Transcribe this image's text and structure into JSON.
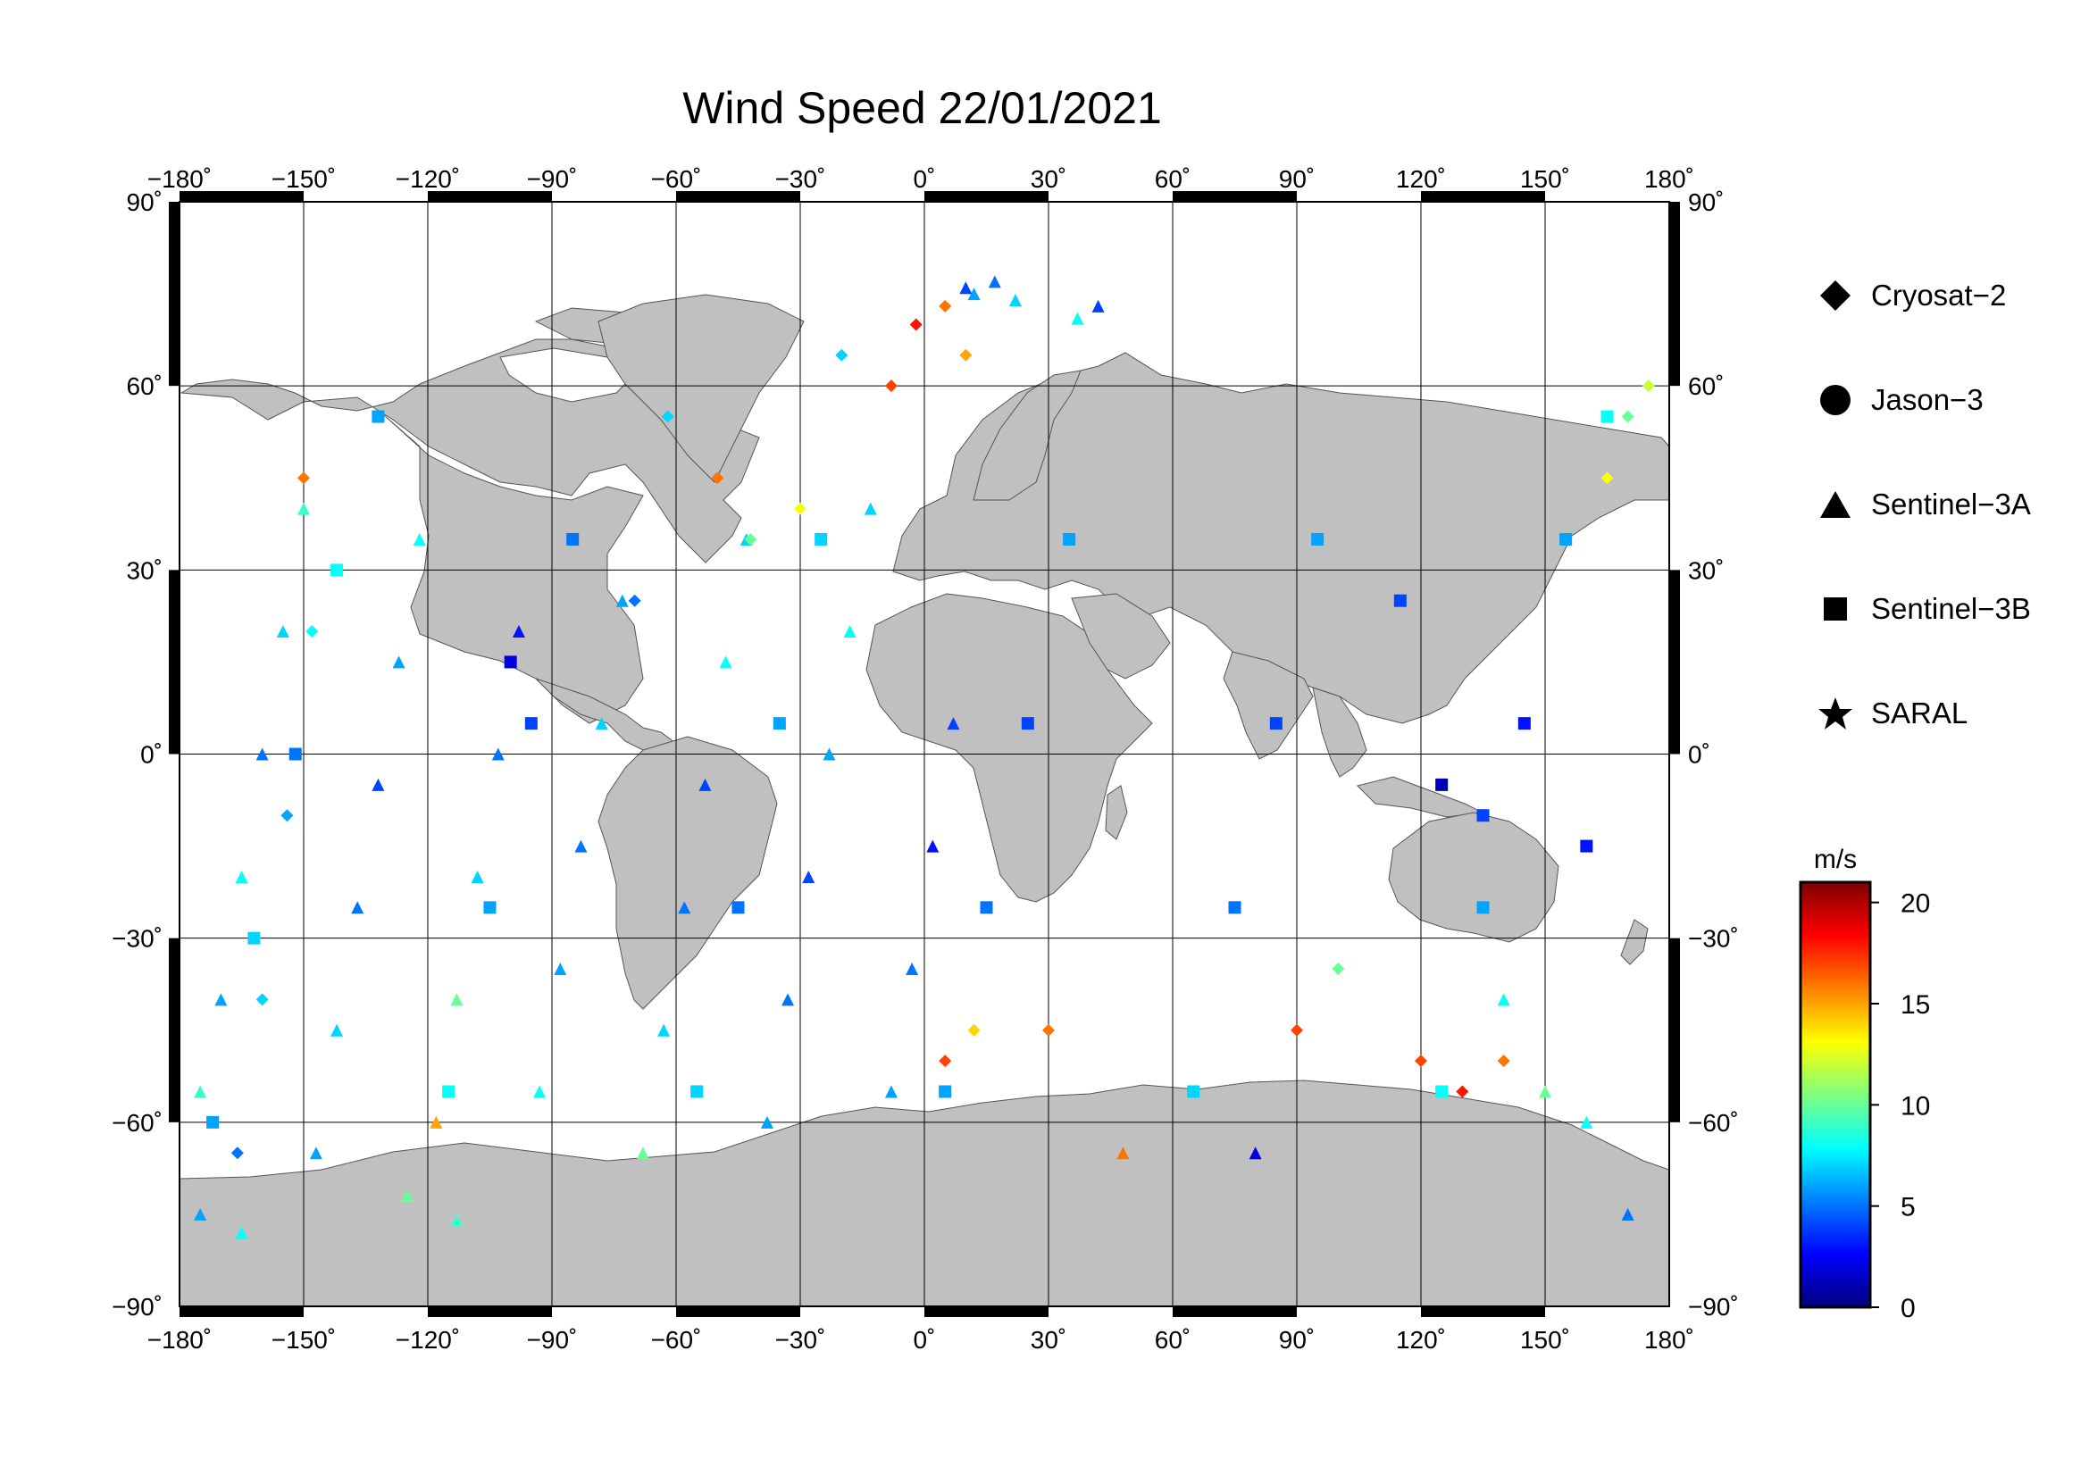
{
  "title": "Wind Speed 22/01/2021",
  "map": {
    "lon_ticks": [
      "−180˚",
      "−150˚",
      "−120˚",
      "−90˚",
      "−60˚",
      "−30˚",
      "0˚",
      "30˚",
      "60˚",
      "90˚",
      "120˚",
      "150˚",
      "180˚"
    ],
    "lat_ticks": [
      "90˚",
      "60˚",
      "30˚",
      "0˚",
      "−30˚",
      "−60˚",
      "−90˚"
    ],
    "land_color": "#c0c0c0",
    "ocean_color": "#ffffff"
  },
  "legend": [
    {
      "label": "Cryosat−2",
      "symbol": "diamond"
    },
    {
      "label": "Jason−3",
      "symbol": "circle"
    },
    {
      "label": "Sentinel−3A",
      "symbol": "triangle"
    },
    {
      "label": "Sentinel−3B",
      "symbol": "square"
    },
    {
      "label": "SARAL",
      "symbol": "star"
    }
  ],
  "colorbar": {
    "unit": "m/s",
    "min": 0,
    "max": 21,
    "ticks": [
      "20",
      "15",
      "10",
      "5",
      "0"
    ],
    "tick_values": [
      20,
      15,
      10,
      5,
      0
    ],
    "colors": [
      "#00007f",
      "#0000ff",
      "#007fff",
      "#00ffff",
      "#7fff7f",
      "#ffff00",
      "#ff7f00",
      "#ff0000",
      "#7f0000"
    ]
  },
  "chart_data": {
    "type": "scatter",
    "title": "Wind Speed 22/01/2021",
    "xlim": [
      -180,
      180
    ],
    "ylim": [
      -90,
      90
    ],
    "value_unit": "m/s",
    "value_range": [
      0,
      21
    ],
    "series": [
      {
        "name": "Sentinel−3A",
        "symbol": "triangle",
        "points": [
          [
            -175,
            -55,
            9
          ],
          [
            -170,
            -40,
            6
          ],
          [
            -165,
            -20,
            8
          ],
          [
            -160,
            0,
            5
          ],
          [
            -155,
            20,
            7
          ],
          [
            -150,
            40,
            9
          ],
          [
            -147,
            -65,
            6
          ],
          [
            -142,
            -45,
            7
          ],
          [
            -137,
            -25,
            5
          ],
          [
            -132,
            -5,
            4
          ],
          [
            -127,
            15,
            6
          ],
          [
            -122,
            35,
            8
          ],
          [
            -118,
            -60,
            15
          ],
          [
            -113,
            -40,
            10
          ],
          [
            -108,
            -20,
            7
          ],
          [
            -103,
            0,
            5
          ],
          [
            -98,
            20,
            3
          ],
          [
            -93,
            -55,
            8
          ],
          [
            -88,
            -35,
            6
          ],
          [
            -83,
            -15,
            5
          ],
          [
            -78,
            5,
            7
          ],
          [
            -73,
            25,
            6
          ],
          [
            -68,
            -65,
            10
          ],
          [
            -63,
            -45,
            7
          ],
          [
            -58,
            -25,
            5
          ],
          [
            -53,
            -5,
            4
          ],
          [
            -48,
            15,
            8
          ],
          [
            -43,
            35,
            7
          ],
          [
            -38,
            -60,
            6
          ],
          [
            -33,
            -40,
            5
          ],
          [
            -28,
            -20,
            4
          ],
          [
            -23,
            0,
            6
          ],
          [
            -18,
            20,
            8
          ],
          [
            -13,
            40,
            7
          ],
          [
            -8,
            -55,
            6
          ],
          [
            -3,
            -35,
            5
          ],
          [
            2,
            -15,
            3
          ],
          [
            7,
            5,
            4
          ],
          [
            12,
            75,
            6
          ],
          [
            17,
            77,
            5
          ],
          [
            22,
            74,
            7
          ],
          [
            37,
            71,
            8
          ],
          [
            42,
            73,
            4
          ],
          [
            -175,
            -75,
            6
          ],
          [
            -165,
            -78,
            8
          ],
          [
            -125,
            -72,
            10
          ],
          [
            -113,
            -76,
            9
          ],
          [
            10,
            76,
            4
          ],
          [
            48,
            -65,
            16
          ],
          [
            80,
            -65,
            2
          ],
          [
            140,
            -40,
            8
          ],
          [
            150,
            -55,
            10
          ],
          [
            160,
            -60,
            8
          ],
          [
            170,
            -75,
            5
          ]
        ]
      },
      {
        "name": "Sentinel−3B",
        "symbol": "square",
        "points": [
          [
            -172,
            -60,
            6
          ],
          [
            -162,
            -30,
            7
          ],
          [
            -152,
            0,
            5
          ],
          [
            -142,
            30,
            8
          ],
          [
            -132,
            55,
            6
          ],
          [
            -115,
            -55,
            8
          ],
          [
            -105,
            -25,
            6
          ],
          [
            -95,
            5,
            4
          ],
          [
            -85,
            35,
            5
          ],
          [
            -55,
            -55,
            7
          ],
          [
            -45,
            -25,
            5
          ],
          [
            -35,
            5,
            6
          ],
          [
            -25,
            35,
            7
          ],
          [
            5,
            -55,
            6
          ],
          [
            15,
            -25,
            5
          ],
          [
            25,
            5,
            4
          ],
          [
            35,
            35,
            6
          ],
          [
            65,
            -55,
            7
          ],
          [
            75,
            -25,
            5
          ],
          [
            85,
            5,
            4
          ],
          [
            95,
            35,
            6
          ],
          [
            125,
            -55,
            8
          ],
          [
            135,
            -25,
            6
          ],
          [
            145,
            5,
            3
          ],
          [
            155,
            35,
            6
          ],
          [
            165,
            55,
            8
          ],
          [
            -100,
            15,
            2
          ],
          [
            115,
            25,
            4
          ],
          [
            125,
            -5,
            1
          ],
          [
            135,
            -10,
            4
          ],
          [
            160,
            -15,
            3
          ]
        ]
      },
      {
        "name": "Cryosat−2",
        "symbol": "diamond",
        "points": [
          [
            -166,
            -65,
            5
          ],
          [
            -160,
            -40,
            7
          ],
          [
            -154,
            -10,
            6
          ],
          [
            -148,
            20,
            8
          ],
          [
            -150,
            45,
            16
          ],
          [
            -70,
            25,
            5
          ],
          [
            -62,
            55,
            7
          ],
          [
            -50,
            45,
            16
          ],
          [
            -42,
            35,
            10
          ],
          [
            -30,
            40,
            13
          ],
          [
            -20,
            65,
            7
          ],
          [
            -8,
            60,
            17
          ],
          [
            -2,
            70,
            18
          ],
          [
            5,
            73,
            16
          ],
          [
            10,
            65,
            15
          ],
          [
            5,
            -50,
            17
          ],
          [
            12,
            -45,
            14
          ],
          [
            30,
            -45,
            16
          ],
          [
            90,
            -45,
            17
          ],
          [
            100,
            -35,
            10
          ],
          [
            120,
            -50,
            17
          ],
          [
            130,
            -55,
            18
          ],
          [
            140,
            -50,
            16
          ],
          [
            165,
            45,
            13
          ],
          [
            170,
            55,
            10
          ],
          [
            175,
            60,
            12
          ]
        ]
      }
    ]
  }
}
